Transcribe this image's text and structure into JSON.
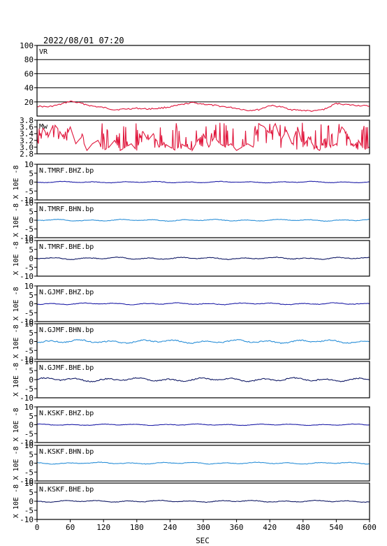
{
  "header": {
    "timestamp": "2022/08/01 07:20"
  },
  "x_axis": {
    "label": "SEC",
    "ticks": [
      0,
      60,
      120,
      180,
      240,
      300,
      360,
      420,
      480,
      540,
      600
    ],
    "range": [
      0,
      600
    ]
  },
  "chart_data": [
    {
      "type": "line",
      "panel_label": "VR",
      "ylim": [
        0,
        100
      ],
      "yticks": [
        20,
        40,
        60,
        80,
        100
      ],
      "grid": true,
      "color": "#e0163c",
      "series": [
        {
          "x": [
            0,
            20,
            40,
            60,
            80,
            100,
            120,
            140,
            160,
            180,
            200,
            220,
            240,
            260,
            280,
            300,
            320,
            340,
            360,
            380,
            400,
            420,
            440,
            460,
            480,
            500,
            520,
            540,
            560,
            580,
            600
          ],
          "values": [
            14,
            13,
            16,
            21,
            18,
            14,
            12,
            9,
            10,
            11,
            10,
            11,
            13,
            16,
            19,
            17,
            15,
            13,
            11,
            8,
            9,
            15,
            13,
            9,
            8,
            7,
            10,
            18,
            16,
            15,
            14
          ]
        }
      ]
    },
    {
      "type": "line",
      "panel_label": "Mw",
      "ylim": [
        2.8,
        3.8
      ],
      "yticks": [
        2.8,
        3.0,
        3.2,
        3.4,
        3.6,
        3.8
      ],
      "color": "#e0163c",
      "series": [
        {
          "x": [
            0,
            10,
            20,
            30,
            40,
            50,
            60,
            70,
            80,
            90,
            100,
            110,
            120,
            130,
            140,
            150,
            160,
            170,
            180,
            190,
            200,
            210,
            220,
            230,
            240,
            250,
            260,
            270,
            280,
            290,
            300,
            310,
            320,
            330,
            340,
            350,
            360,
            370,
            380,
            390,
            400,
            410,
            420,
            430,
            440,
            450,
            460,
            470,
            480,
            490,
            500,
            510,
            520,
            530,
            540,
            550,
            560,
            570,
            580,
            590,
            600
          ],
          "values": [
            3.1,
            3.6,
            3.3,
            3.7,
            3.5,
            3.2,
            3.6,
            3.1,
            3.3,
            2.9,
            3.1,
            3.2,
            2.9,
            3.0,
            3.2,
            2.9,
            3.0,
            3.1,
            2.9,
            3.5,
            3.2,
            3.4,
            3.0,
            3.1,
            3.0,
            2.9,
            3.1,
            3.0,
            2.9,
            3.2,
            3.4,
            3.0,
            3.3,
            3.1,
            3.0,
            3.1,
            2.9,
            3.0,
            3.1,
            3.0,
            3.7,
            3.6,
            3.4,
            3.7,
            3.2,
            3.5,
            3.1,
            3.6,
            3.0,
            3.3,
            3.0,
            2.9,
            3.3,
            3.0,
            3.1,
            3.6,
            3.4,
            3.0,
            3.2,
            2.9,
            3.0
          ]
        }
      ]
    },
    {
      "type": "line",
      "panel_label": "N.TMRF.BHZ.bp",
      "ylim": [
        -10,
        10
      ],
      "yticks": [
        -10,
        -5,
        0,
        5,
        10
      ],
      "ylabel": "X 10E -8",
      "color": "#1f1fa8",
      "amplitude": 0.4
    },
    {
      "type": "line",
      "panel_label": "N.TMRF.BHN.bp",
      "ylim": [
        -10,
        10
      ],
      "yticks": [
        -10,
        -5,
        0,
        5,
        10
      ],
      "ylabel": "X 10E -8",
      "color": "#2a8fd8",
      "amplitude": 0.5
    },
    {
      "type": "line",
      "panel_label": "N.TMRF.BHE.bp",
      "ylim": [
        -10,
        10
      ],
      "yticks": [
        -10,
        -5,
        0,
        5,
        10
      ],
      "ylabel": "X 10E -8",
      "color": "#111a66",
      "amplitude": 0.6
    },
    {
      "type": "line",
      "panel_label": "N.GJMF.BHZ.bp",
      "ylim": [
        -10,
        10
      ],
      "yticks": [
        -10,
        -5,
        0,
        5,
        10
      ],
      "ylabel": "X 10E -8",
      "color": "#1f1fa8",
      "amplitude": 0.5
    },
    {
      "type": "line",
      "panel_label": "N.GJMF.BHN.bp",
      "ylim": [
        -10,
        10
      ],
      "yticks": [
        -10,
        -5,
        0,
        5,
        10
      ],
      "ylabel": "X 10E -8",
      "color": "#2a8fd8",
      "amplitude": 1.0
    },
    {
      "type": "line",
      "panel_label": "N.GJMF.BHE.bp",
      "ylim": [
        -10,
        10
      ],
      "yticks": [
        -10,
        -5,
        0,
        5,
        10
      ],
      "ylabel": "X 10E -8",
      "color": "#111a66",
      "amplitude": 1.0
    },
    {
      "type": "line",
      "panel_label": "N.KSKF.BHZ.bp",
      "ylim": [
        -10,
        10
      ],
      "yticks": [
        -10,
        -5,
        0,
        5,
        10
      ],
      "ylabel": "X 10E -8",
      "color": "#1f1fa8",
      "amplitude": 0.4
    },
    {
      "type": "line",
      "panel_label": "N.KSKF.BHN.bp",
      "ylim": [
        -10,
        10
      ],
      "yticks": [
        -10,
        -5,
        0,
        5,
        10
      ],
      "ylabel": "X 10E -8",
      "color": "#2a8fd8",
      "amplitude": 0.5
    },
    {
      "type": "line",
      "panel_label": "N.KSKF.BHE.bp",
      "ylim": [
        -10,
        10
      ],
      "yticks": [
        -10,
        -5,
        0,
        5,
        10
      ],
      "ylabel": "X 10E -8",
      "color": "#111a66",
      "amplitude": 0.5
    }
  ]
}
